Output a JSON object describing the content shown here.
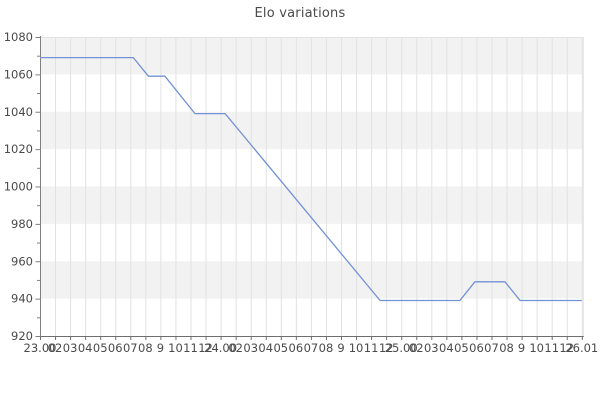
{
  "chart_data": {
    "type": "line",
    "title": "Elo variations",
    "xlabel": "",
    "ylabel": "",
    "ylim": [
      920,
      1080
    ],
    "y_major_ticks": [
      920,
      940,
      960,
      980,
      1000,
      1020,
      1040,
      1060,
      1080
    ],
    "y_minor_ticks": [
      930,
      950,
      970,
      990,
      1010,
      1030,
      1050,
      1070
    ],
    "x_tick_labels": [
      "23.00",
      "02",
      "03",
      "04",
      "05",
      "06",
      "07",
      "08",
      "9",
      "10",
      "11",
      "12",
      "24.00",
      "02",
      "03",
      "04",
      "05",
      "06",
      "07",
      "08",
      "9",
      "10",
      "11",
      "12",
      "25.00",
      "02",
      "03",
      "04",
      "05",
      "06",
      "07",
      "08",
      "9",
      "10",
      "11",
      "12",
      "26.01"
    ],
    "grid": "vertical gridlines at every x tick; alternating shaded horizontal bands every 20 units (gray band at 1060-1080, 1020-1040, 980-1000, 940-960)",
    "legend_position": "none",
    "series": [
      {
        "name": "Elo",
        "color": "#7292d6",
        "elo_levels_visited": [
          1069,
          1059,
          1039,
          939,
          949,
          939
        ],
        "points": [
          {
            "x_tick": 0.0,
            "elo": 1069
          },
          {
            "x_tick": 6.2,
            "elo": 1069
          },
          {
            "x_tick": 7.2,
            "elo": 1059
          },
          {
            "x_tick": 8.3,
            "elo": 1059
          },
          {
            "x_tick": 10.3,
            "elo": 1039
          },
          {
            "x_tick": 12.3,
            "elo": 1039
          },
          {
            "x_tick": 22.6,
            "elo": 939
          },
          {
            "x_tick": 27.9,
            "elo": 939
          },
          {
            "x_tick": 28.9,
            "elo": 949
          },
          {
            "x_tick": 30.9,
            "elo": 949
          },
          {
            "x_tick": 31.9,
            "elo": 939
          },
          {
            "x_tick": 36.0,
            "elo": 939
          }
        ]
      }
    ],
    "colors": {
      "line": "#7292d6",
      "band_fill": "#f2f2f2",
      "gridline": "#e2e2e2",
      "y_axis": "#808080",
      "x_axis": "#6e6e6e",
      "tick_label": "#4a4a4a",
      "title": "#4a4a4a",
      "background": "#ffffff"
    },
    "band_step": 20
  }
}
